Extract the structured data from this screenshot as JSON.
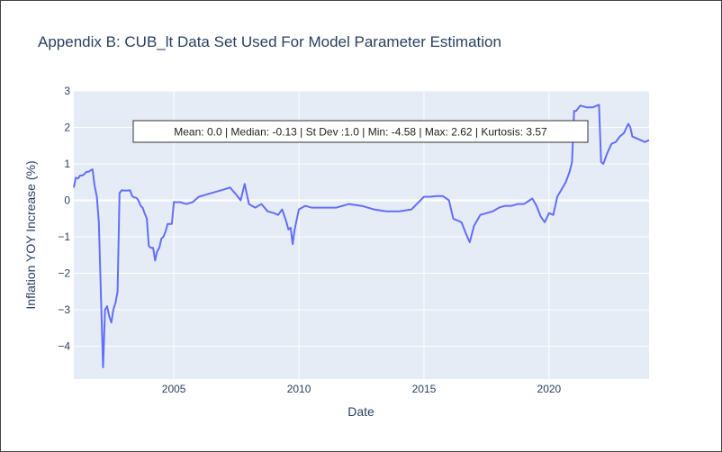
{
  "chart_data": {
    "type": "line",
    "title": "Appendix B: CUB_lt Data Set Used For Model Parameter Estimation",
    "xlabel": "Date",
    "ylabel": "Inflation YOY Increase (%)",
    "xlim": [
      2001.0,
      2024.0
    ],
    "ylim": [
      -4.9,
      3.0
    ],
    "x_ticks": [
      2005,
      2010,
      2015,
      2020
    ],
    "y_ticks": [
      3,
      2,
      1,
      0,
      -1,
      -2,
      -3,
      -4
    ],
    "y_tick_labels": [
      "3",
      "2",
      "1",
      "0",
      "−1",
      "−2",
      "−3",
      "−4"
    ],
    "grid": true,
    "annotation": "Mean: 0.0 | Median: -0.13 | St Dev :1.0 | Min: -4.58 | Max: 2.62 | Kurtosis: 3.57",
    "line_color": "#636efa",
    "series": [
      {
        "x": [
          2001.0,
          2001.08,
          2001.17,
          2001.25,
          2001.33,
          2001.42,
          2001.5,
          2001.58,
          2001.67,
          2001.75,
          2001.83,
          2001.92,
          2002.0,
          2002.08,
          2002.17,
          2002.25,
          2002.33,
          2002.42,
          2002.5,
          2002.58,
          2002.67,
          2002.75,
          2002.83,
          2002.92,
          2003.0,
          2003.08,
          2003.17,
          2003.25,
          2003.33,
          2003.42,
          2003.5,
          2003.58,
          2003.67,
          2003.75,
          2003.83,
          2003.92,
          2004.0,
          2004.08,
          2004.17,
          2004.25,
          2004.33,
          2004.42,
          2004.5,
          2004.58,
          2004.67,
          2004.75,
          2004.83,
          2004.92,
          2005.0,
          2005.25,
          2005.5,
          2005.75,
          2006.0,
          2006.25,
          2006.5,
          2006.75,
          2007.0,
          2007.25,
          2007.5,
          2007.67,
          2007.83,
          2008.0,
          2008.25,
          2008.5,
          2008.75,
          2009.0,
          2009.17,
          2009.33,
          2009.5,
          2009.58,
          2009.67,
          2009.75,
          2009.83,
          2010.0,
          2010.25,
          2010.5,
          2010.75,
          2011.0,
          2011.5,
          2012.0,
          2012.5,
          2013.0,
          2013.5,
          2014.0,
          2014.5,
          2015.0,
          2015.25,
          2015.5,
          2015.75,
          2016.0,
          2016.17,
          2016.33,
          2016.5,
          2016.67,
          2016.83,
          2017.0,
          2017.25,
          2017.5,
          2017.75,
          2018.0,
          2018.25,
          2018.5,
          2018.75,
          2019.0,
          2019.33,
          2019.5,
          2019.67,
          2019.83,
          2020.0,
          2020.17,
          2020.33,
          2020.5,
          2020.67,
          2020.83,
          2020.92,
          2021.0,
          2021.08,
          2021.25,
          2021.5,
          2021.75,
          2021.92,
          2022.0,
          2022.08,
          2022.17,
          2022.33,
          2022.5,
          2022.67,
          2022.83,
          2023.0,
          2023.17,
          2023.25,
          2023.33,
          2023.5,
          2023.67,
          2023.83,
          2024.0
        ],
        "y": [
          0.35,
          0.62,
          0.6,
          0.68,
          0.68,
          0.72,
          0.78,
          0.78,
          0.82,
          0.85,
          0.4,
          0.1,
          -0.6,
          -2.5,
          -4.58,
          -3.0,
          -2.9,
          -3.2,
          -3.35,
          -3.0,
          -2.8,
          -2.5,
          0.2,
          0.28,
          0.27,
          0.27,
          0.27,
          0.28,
          0.12,
          0.08,
          0.07,
          0.0,
          -0.15,
          -0.2,
          -0.35,
          -0.5,
          -1.25,
          -1.3,
          -1.3,
          -1.65,
          -1.4,
          -1.3,
          -1.05,
          -1.0,
          -0.85,
          -0.65,
          -0.65,
          -0.65,
          -0.05,
          -0.05,
          -0.1,
          -0.05,
          0.1,
          0.15,
          0.2,
          0.25,
          0.3,
          0.35,
          0.15,
          0.0,
          0.45,
          -0.1,
          -0.2,
          -0.1,
          -0.3,
          -0.35,
          -0.4,
          -0.25,
          -0.6,
          -0.8,
          -0.75,
          -1.2,
          -0.8,
          -0.25,
          -0.15,
          -0.2,
          -0.2,
          -0.2,
          -0.2,
          -0.1,
          -0.15,
          -0.25,
          -0.3,
          -0.3,
          -0.25,
          0.1,
          0.1,
          0.12,
          0.12,
          0.0,
          -0.5,
          -0.55,
          -0.6,
          -0.9,
          -1.15,
          -0.7,
          -0.4,
          -0.35,
          -0.3,
          -0.2,
          -0.15,
          -0.15,
          -0.1,
          -0.1,
          0.05,
          -0.15,
          -0.45,
          -0.6,
          -0.35,
          -0.4,
          0.1,
          0.3,
          0.5,
          0.8,
          1.05,
          2.45,
          2.45,
          2.6,
          2.55,
          2.55,
          2.6,
          2.62,
          1.05,
          1.0,
          1.3,
          1.55,
          1.6,
          1.75,
          1.85,
          2.1,
          2.0,
          1.75,
          1.7,
          1.65,
          1.6,
          1.65
        ]
      }
    ]
  }
}
